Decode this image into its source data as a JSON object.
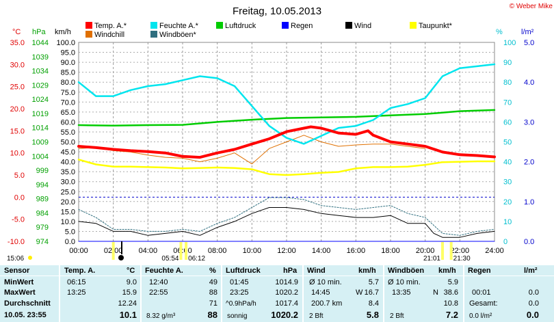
{
  "title": "Freitag, 10.05.2013",
  "copyright": "© Weber Mike",
  "colors": {
    "temp": "#ff0000",
    "feuchte": "#00e5ee",
    "luftdruck": "#00cc00",
    "regen": "#0000ff",
    "wind": "#000000",
    "taupunkt": "#ffff00",
    "windchill": "#e07000",
    "windboeen": "#2f6f7f"
  },
  "chart_data": {
    "type": "line",
    "x_label_unit": "time",
    "x_ticks": [
      "00:00",
      "02:00",
      "04:00",
      "06:00",
      "08:00",
      "10:00",
      "12:00",
      "14:00",
      "16:00",
      "18:00",
      "20:00",
      "22:00",
      "24:00"
    ],
    "axes": {
      "celsius": {
        "unit": "°C",
        "ticks": [
          "35.0",
          "30.0",
          "25.0",
          "20.0",
          "15.0",
          "10.0",
          "5.0",
          "0.0",
          "-5.0",
          "-10.0"
        ],
        "range": [
          -10,
          35
        ]
      },
      "hpa": {
        "unit": "hPa",
        "ticks": [
          "1044",
          "1039",
          "1034",
          "1029",
          "1024",
          "1019",
          "1014",
          "1009",
          "1004",
          "999",
          "994",
          "989",
          "984",
          "979",
          "974"
        ],
        "range": [
          974,
          1044
        ]
      },
      "kmh": {
        "unit": "km/h",
        "ticks": [
          "100.0",
          "95.0",
          "90.0",
          "85.0",
          "80.0",
          "75.0",
          "70.0",
          "65.0",
          "60.0",
          "55.0",
          "50.0",
          "45.0",
          "40.0",
          "35.0",
          "30.0",
          "25.0",
          "20.0",
          "15.0",
          "10.0",
          "5.0",
          "0.0"
        ],
        "range": [
          0,
          100
        ]
      },
      "percent": {
        "unit": "%",
        "ticks": [
          "100",
          "90",
          "80",
          "70",
          "60",
          "50",
          "40",
          "30",
          "20",
          "10",
          "0"
        ],
        "range": [
          0,
          100
        ]
      },
      "lm2": {
        "unit": "l/m²",
        "ticks": [
          "5.0",
          "4.0",
          "3.0",
          "2.0",
          "1.0",
          "0.0"
        ],
        "range": [
          0,
          5
        ]
      }
    },
    "series": [
      {
        "name": "Temp. A.*",
        "axis": "celsius",
        "x": [
          0,
          1,
          2,
          3,
          4,
          5,
          6,
          7,
          8,
          9,
          10,
          11,
          12,
          13,
          13.4,
          14,
          15,
          16,
          16.7,
          17,
          18,
          19,
          20,
          21,
          22,
          23,
          24
        ],
        "values": [
          11.5,
          11.2,
          10.8,
          10.5,
          10.3,
          10.0,
          9.2,
          9.0,
          10.0,
          10.8,
          12.0,
          13.2,
          14.8,
          15.6,
          15.9,
          15.6,
          14.5,
          14.2,
          15.0,
          14.0,
          12.5,
          12.0,
          11.5,
          10.2,
          9.6,
          9.4,
          9.1
        ]
      },
      {
        "name": "Feuchte A.*",
        "axis": "percent",
        "x": [
          0,
          1,
          2,
          3,
          4,
          5,
          6,
          7,
          8,
          9,
          10,
          11,
          12,
          13,
          14,
          15,
          16,
          17,
          18,
          19,
          20,
          21,
          22,
          23,
          24
        ],
        "values": [
          80,
          73,
          73,
          76,
          78,
          79,
          81,
          83,
          82,
          78,
          68,
          58,
          52,
          49,
          53,
          57,
          58,
          61,
          67,
          69,
          72,
          83,
          87,
          88,
          89
        ]
      },
      {
        "name": "Luftdruck",
        "axis": "hpa",
        "x": [
          0,
          2,
          4,
          6,
          8,
          10,
          12,
          14,
          16,
          18,
          20,
          22,
          24
        ],
        "values": [
          1014.9,
          1014.7,
          1014.9,
          1015.0,
          1016.0,
          1016.8,
          1017.4,
          1017.6,
          1017.8,
          1018.3,
          1018.8,
          1019.8,
          1020.2
        ]
      },
      {
        "name": "Windchill",
        "axis": "celsius",
        "x": [
          0,
          1,
          2,
          3,
          4,
          5,
          6,
          7,
          8,
          9,
          10,
          11,
          12,
          13,
          14,
          15,
          16,
          17,
          18,
          19,
          20
        ],
        "values": [
          11.0,
          11.2,
          10.5,
          10.2,
          9.5,
          9.0,
          8.8,
          8.0,
          8.8,
          10.0,
          7.5,
          11.0,
          12.5,
          14.0,
          12.5,
          11.5,
          11.8,
          12.0,
          12.0,
          11.5,
          11.0
        ]
      },
      {
        "name": "Taupunkt*",
        "axis": "celsius",
        "x": [
          0,
          1,
          2,
          3,
          4,
          5,
          6,
          7,
          8,
          9,
          10,
          11,
          12,
          13,
          14,
          15,
          16,
          17,
          18,
          19,
          20,
          21,
          22,
          23,
          24
        ],
        "values": [
          8.5,
          7.4,
          6.9,
          6.9,
          6.8,
          6.7,
          6.5,
          6.6,
          6.7,
          6.6,
          6.3,
          5.2,
          5.0,
          5.2,
          5.5,
          5.7,
          6.5,
          6.8,
          6.8,
          6.9,
          7.3,
          7.9,
          8.0,
          8.1,
          8.1
        ]
      },
      {
        "name": "Wind",
        "axis": "kmh",
        "x": [
          0,
          1,
          2,
          3,
          4,
          5,
          6,
          7,
          8,
          9,
          10,
          11,
          12,
          13,
          14,
          15,
          16,
          17,
          18,
          19,
          20,
          20.5,
          21,
          22,
          23,
          24
        ],
        "values": [
          10,
          9,
          5,
          5,
          3,
          4,
          5,
          3,
          7,
          10,
          14,
          17,
          17,
          16,
          14,
          13,
          12,
          12,
          13,
          9,
          9,
          4,
          2,
          2,
          4,
          5
        ]
      },
      {
        "name": "Windböen*",
        "axis": "kmh",
        "x": [
          0,
          1,
          2,
          3,
          4,
          5,
          6,
          7,
          8,
          9,
          10,
          11,
          12,
          13,
          14,
          15,
          16,
          17,
          18,
          19,
          20,
          21,
          22,
          23,
          24
        ],
        "values": [
          16,
          12,
          6,
          6,
          5,
          5,
          6,
          5,
          9,
          12,
          17,
          22,
          22,
          21,
          18,
          17,
          16,
          17,
          18,
          14,
          12,
          4,
          3,
          5,
          6
        ]
      },
      {
        "name": "Regen",
        "axis": "lm2",
        "x": [
          0,
          24
        ],
        "values": [
          0,
          0
        ]
      }
    ],
    "legend": [
      {
        "label": "Temp. A.*",
        "color": "#ff0000"
      },
      {
        "label": "Feuchte A.*",
        "color": "#00e5ee"
      },
      {
        "label": "Luftdruck",
        "color": "#00cc00"
      },
      {
        "label": "Regen",
        "color": "#0000ff"
      },
      {
        "label": "Wind",
        "color": "#000000"
      },
      {
        "label": "Taupunkt*",
        "color": "#ffff00"
      },
      {
        "label": "Windchill",
        "color": "#e07000"
      },
      {
        "label": "Windböen*",
        "color": "#2f6f7f"
      }
    ],
    "reference_line_c": 0,
    "sun_marks": [
      {
        "label": "15:06",
        "x": 2.0
      },
      {
        "label": "05:54",
        "x": 5.9
      },
      {
        "label": "06:12",
        "x": 6.2
      },
      {
        "label": "21:01",
        "x": 21.0
      },
      {
        "label": "21:30",
        "x": 21.5
      }
    ]
  },
  "table": {
    "row_labels": [
      "Sensor",
      "MinWert",
      "MaxWert",
      "Durchschnitt",
      "10.05. 23:55"
    ],
    "temp": {
      "header": "Temp. A.",
      "unit": "°C",
      "min_time": "06:15",
      "min": "9.0",
      "max_time": "13:25",
      "max": "15.9",
      "avg": "12.24",
      "current": "10.1"
    },
    "feuchte": {
      "header": "Feuchte A.",
      "unit": "%",
      "min_time": "12:40",
      "min": "49",
      "max_time": "22:55",
      "max": "88",
      "avg": "71",
      "extra": "8.32 g/m³",
      "current": "88"
    },
    "luftdruck": {
      "header": "Luftdruck",
      "unit": "hPa",
      "min_time": "01:45",
      "min": "1014.9",
      "max_time": "23:25",
      "max": "1020.2",
      "avg_label": "^0.9hPa/h",
      "avg": "1017.4",
      "extra": "sonnig",
      "current": "1020.2"
    },
    "wind": {
      "header": "Wind",
      "unit": "km/h",
      "min_label": "Ø 10 min.",
      "min": "5.7",
      "max_time": "14:45",
      "max_dir": "W",
      "max": "16.7",
      "avg_label": "200.7 km",
      "avg": "8.4",
      "extra": "2 Bft",
      "current": "5.8"
    },
    "windboeen": {
      "header": "Windböen",
      "unit": "km/h",
      "min_label": "Ø 10 min.",
      "min": "5.9",
      "max_time": "13:35",
      "max_dir": "N",
      "max": "38.6",
      "avg": "10.8",
      "extra": "2 Bft",
      "current": "7.2"
    },
    "regen": {
      "header": "Regen",
      "unit": "l/m²",
      "max_time": "00:01",
      "max": "0.0",
      "avg_label": "Gesamt:",
      "avg": "0.0",
      "extra": "0.0 l/m²",
      "current": "0.0"
    }
  }
}
